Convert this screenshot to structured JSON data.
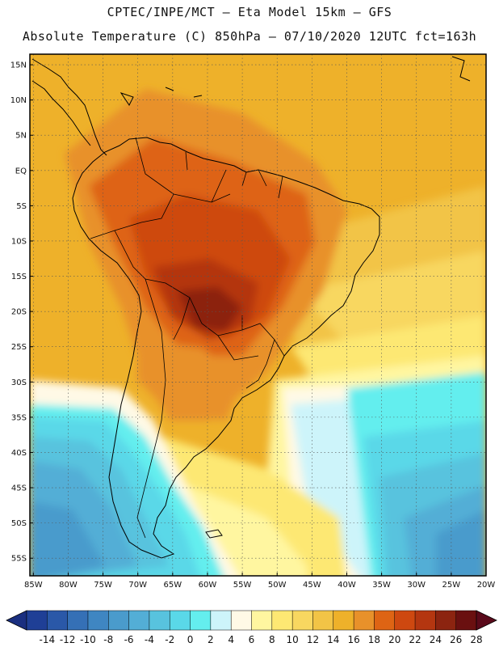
{
  "header": {
    "line1": "CPTEC/INPE/MCT –  Eta Model 15km – GFS",
    "line2": "Absolute Temperature (C) 850hPa – 07/10/2020 12UTC fct=163h"
  },
  "map": {
    "lat_labels": [
      "15N",
      "10N",
      "5N",
      "EQ",
      "5S",
      "10S",
      "15S",
      "20S",
      "25S",
      "30S",
      "35S",
      "40S",
      "45S",
      "50S",
      "55S"
    ],
    "lon_labels": [
      "85W",
      "80W",
      "75W",
      "70W",
      "65W",
      "60W",
      "55W",
      "50W",
      "45W",
      "40W",
      "35W",
      "30W",
      "25W",
      "20W"
    ],
    "lat_values": [
      15,
      10,
      5,
      0,
      -5,
      -10,
      -15,
      -20,
      -25,
      -30,
      -35,
      -40,
      -45,
      -50,
      -55
    ],
    "lon_values": [
      -85,
      -80,
      -75,
      -70,
      -65,
      -60,
      -55,
      -50,
      -45,
      -40,
      -35,
      -30,
      -25,
      -20
    ],
    "extent": {
      "lon_min": -85.5,
      "lon_max": -20,
      "lat_min": -57.5,
      "lat_max": 16.5
    },
    "grid": "dotted"
  },
  "colorbar": {
    "labels": [
      "-14",
      "-12",
      "-10",
      "-8",
      "-6",
      "-4",
      "-2",
      "0",
      "2",
      "4",
      "6",
      "8",
      "10",
      "12",
      "14",
      "16",
      "18",
      "20",
      "22",
      "24",
      "26",
      "28"
    ],
    "colors": [
      "#1f3f96",
      "#2a58a8",
      "#3570b6",
      "#3f86c2",
      "#4a9bcc",
      "#53aed6",
      "#58c3de",
      "#5ad8e8",
      "#64eeee",
      "#cdf4fa",
      "#fff9e6",
      "#fff6a0",
      "#fde873",
      "#f8d760",
      "#f2c446",
      "#eeb12a",
      "#e8912a",
      "#de6414",
      "#ce4810",
      "#b43610",
      "#8c2410",
      "#6a1010"
    ],
    "arrow_left": "#1a2f80",
    "arrow_right": "#5a0a1a"
  }
}
